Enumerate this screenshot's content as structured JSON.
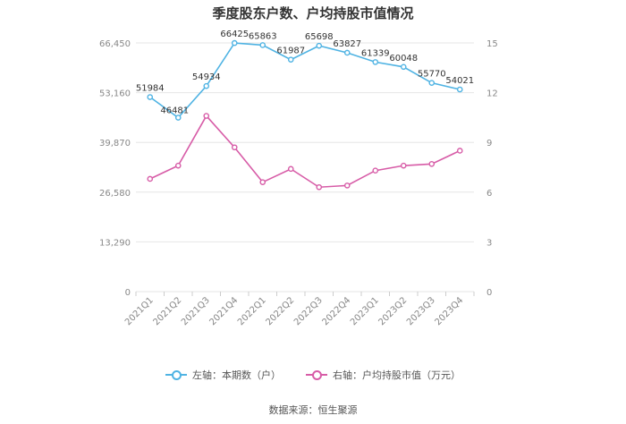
{
  "title": "季度股东户数、户均持股市值情况",
  "source": "数据来源：恒生聚源",
  "legend": {
    "left_label": "左轴：本期数（户）",
    "right_label": "右轴：户均持股市值（万元）"
  },
  "colors": {
    "left_series": "#4fb3e3",
    "right_series": "#d75ca7",
    "grid": "#e6e6e6",
    "axis_text": "#888888"
  },
  "chart_data": {
    "type": "line",
    "title": "季度股东户数、户均持股市值情况",
    "categories": [
      "2021Q1",
      "2021Q2",
      "2021Q3",
      "2021Q4",
      "2022Q1",
      "2022Q2",
      "2022Q3",
      "2022Q4",
      "2023Q1",
      "2023Q2",
      "2023Q3",
      "2023Q4"
    ],
    "left_axis": {
      "ticks": [
        "0",
        "13,290",
        "26,580",
        "39,870",
        "53,160",
        "66,450"
      ],
      "ylim": [
        0,
        66450
      ]
    },
    "right_axis": {
      "ticks": [
        "0",
        "3",
        "6",
        "9",
        "12",
        "15"
      ],
      "ylim": [
        0,
        15
      ]
    },
    "series": [
      {
        "name": "左轴：本期数（户）",
        "axis": "left",
        "values": [
          51984,
          46481,
          54934,
          66425,
          65863,
          61987,
          65698,
          63827,
          61339,
          60048,
          55770,
          54021
        ],
        "labels": [
          "51984",
          "46481",
          "54934",
          "66425",
          "65863",
          "61987",
          "65698",
          "63827",
          "61339",
          "60048",
          "55770",
          "54021"
        ]
      },
      {
        "name": "右轴：户均持股市值（万元）",
        "axis": "right",
        "values": [
          6.8,
          7.6,
          10.6,
          8.7,
          6.6,
          7.4,
          6.3,
          6.4,
          7.3,
          7.6,
          7.7,
          8.5
        ]
      }
    ],
    "grid": true,
    "legend_position": "bottom"
  }
}
